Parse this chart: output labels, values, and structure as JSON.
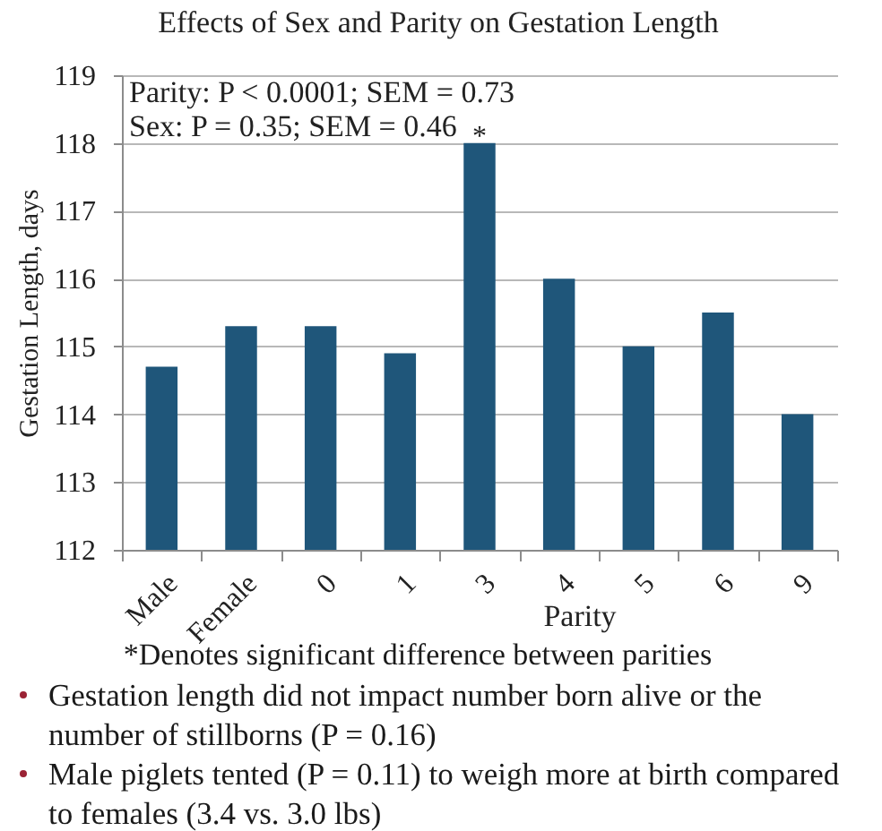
{
  "chart_data": {
    "type": "bar",
    "title": "Effects of Sex and Parity on Gestation Length",
    "xlabel": "Parity",
    "ylabel": "Gestation Length, days",
    "categories": [
      "Male",
      "Female",
      "0",
      "1",
      "3",
      "4",
      "5",
      "6",
      "9"
    ],
    "values": [
      114.7,
      115.3,
      115.3,
      114.9,
      118.0,
      116.0,
      115.0,
      115.5,
      114.0
    ],
    "color": "#1f567a",
    "ylim": [
      112,
      119
    ],
    "yticks": [
      112,
      113,
      114,
      115,
      116,
      117,
      118,
      119
    ],
    "grid": "y",
    "annotations": [
      "Parity: P < 0.0001; SEM = 0.73",
      "Sex: P = 0.35; SEM = 0.46",
      {
        "text": "*",
        "x": "3",
        "y": 118
      },
      "*Denotes significant difference between parities",
      "Gestation length did not impact number born alive or the number of stillborns (P = 0.16)",
      "Male piglets tented (P = 0.11) to weigh more at birth compared to females (3.4 vs. 3.0 lbs)"
    ]
  }
}
